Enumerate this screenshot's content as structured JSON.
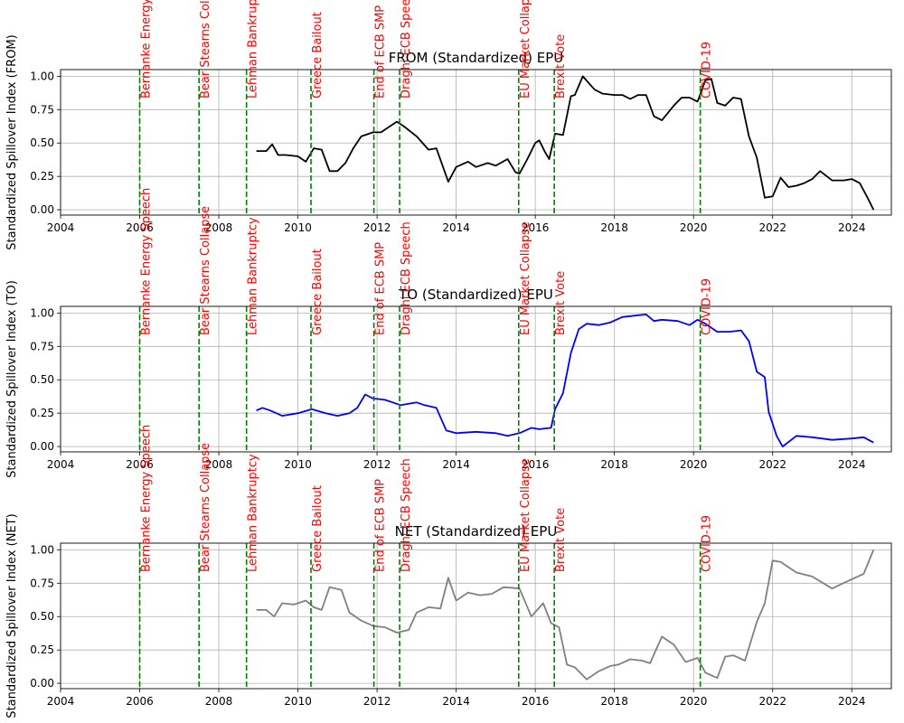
{
  "chart_data": [
    {
      "type": "line",
      "title": "FROM (Standardized) EPU",
      "ylabel": "Standardized Spillover Index (FROM)",
      "xlabel": "",
      "xlim": [
        2004,
        2025
      ],
      "ylim": [
        -0.04,
        1.05
      ],
      "xticks": [
        2004,
        2006,
        2008,
        2010,
        2012,
        2014,
        2016,
        2018,
        2020,
        2022,
        2024
      ],
      "yticks": [
        0.0,
        0.25,
        0.5,
        0.75,
        1.0
      ],
      "ytick_labels": [
        "0.00",
        "0.25",
        "0.50",
        "0.75",
        "1.00"
      ],
      "grid": true,
      "line_color": "#000000",
      "series": [
        {
          "x": [
            2008.95,
            2009.2,
            2009.35,
            2009.5,
            2009.7,
            2010.0,
            2010.2,
            2010.4,
            2010.6,
            2010.8,
            2011.0,
            2011.2,
            2011.4,
            2011.6,
            2011.9,
            2012.1,
            2012.3,
            2012.5,
            2012.7,
            2013.0,
            2013.3,
            2013.5,
            2013.8,
            2014.0,
            2014.3,
            2014.5,
            2014.8,
            2015.0,
            2015.3,
            2015.5,
            2015.6,
            2015.8,
            2016.0,
            2016.1,
            2016.25,
            2016.35,
            2016.5,
            2016.7,
            2016.9,
            2017.0,
            2017.2,
            2017.35,
            2017.5,
            2017.7,
            2018.0,
            2018.2,
            2018.4,
            2018.6,
            2018.8,
            2019.0,
            2019.2,
            2019.5,
            2019.7,
            2019.9,
            2020.1,
            2020.3,
            2020.45,
            2020.6,
            2020.8,
            2021.0,
            2021.2,
            2021.4,
            2021.6,
            2021.8,
            2022.0,
            2022.2,
            2022.4,
            2022.6,
            2022.8,
            2023.0,
            2023.2,
            2023.5,
            2023.8,
            2024.0,
            2024.2,
            2024.4,
            2024.55
          ],
          "y": [
            0.44,
            0.44,
            0.49,
            0.41,
            0.41,
            0.4,
            0.36,
            0.46,
            0.45,
            0.29,
            0.29,
            0.35,
            0.46,
            0.55,
            0.58,
            0.58,
            0.62,
            0.66,
            0.62,
            0.55,
            0.45,
            0.46,
            0.21,
            0.32,
            0.36,
            0.32,
            0.35,
            0.33,
            0.38,
            0.28,
            0.27,
            0.38,
            0.5,
            0.52,
            0.43,
            0.38,
            0.57,
            0.56,
            0.85,
            0.86,
            1.0,
            0.95,
            0.9,
            0.87,
            0.86,
            0.86,
            0.83,
            0.86,
            0.86,
            0.7,
            0.67,
            0.78,
            0.84,
            0.84,
            0.81,
            0.97,
            0.98,
            0.8,
            0.78,
            0.84,
            0.83,
            0.55,
            0.39,
            0.09,
            0.1,
            0.24,
            0.17,
            0.18,
            0.2,
            0.23,
            0.29,
            0.22,
            0.22,
            0.23,
            0.2,
            0.09,
            0.0
          ]
        }
      ]
    },
    {
      "type": "line",
      "title": "TO (Standardized) EPU",
      "ylabel": "Standardized Spillover Index (TO)",
      "xlabel": "",
      "xlim": [
        2004,
        2025
      ],
      "ylim": [
        -0.04,
        1.05
      ],
      "xticks": [
        2004,
        2006,
        2008,
        2010,
        2012,
        2014,
        2016,
        2018,
        2020,
        2022,
        2024
      ],
      "yticks": [
        0.0,
        0.25,
        0.5,
        0.75,
        1.0
      ],
      "ytick_labels": [
        "0.00",
        "0.25",
        "0.50",
        "0.75",
        "1.00"
      ],
      "grid": true,
      "line_color": "#0000ff",
      "series": [
        {
          "x": [
            2008.95,
            2009.1,
            2009.3,
            2009.6,
            2010.0,
            2010.35,
            2010.7,
            2011.0,
            2011.3,
            2011.5,
            2011.7,
            2011.9,
            2012.2,
            2012.6,
            2013.0,
            2013.2,
            2013.5,
            2013.75,
            2014.0,
            2014.5,
            2015.0,
            2015.3,
            2015.6,
            2015.9,
            2016.1,
            2016.4,
            2016.5,
            2016.7,
            2016.9,
            2017.1,
            2017.3,
            2017.6,
            2017.9,
            2018.2,
            2018.5,
            2018.8,
            2019.0,
            2019.2,
            2019.6,
            2019.9,
            2020.1,
            2020.3,
            2020.6,
            2020.9,
            2021.2,
            2021.4,
            2021.6,
            2021.8,
            2021.9,
            2022.1,
            2022.25,
            2022.6,
            2023.0,
            2023.5,
            2024.0,
            2024.3,
            2024.55
          ],
          "y": [
            0.27,
            0.29,
            0.27,
            0.23,
            0.25,
            0.28,
            0.25,
            0.23,
            0.25,
            0.29,
            0.39,
            0.36,
            0.35,
            0.31,
            0.33,
            0.31,
            0.29,
            0.12,
            0.1,
            0.11,
            0.1,
            0.08,
            0.1,
            0.14,
            0.13,
            0.14,
            0.28,
            0.4,
            0.7,
            0.88,
            0.92,
            0.91,
            0.93,
            0.97,
            0.98,
            0.99,
            0.94,
            0.95,
            0.94,
            0.91,
            0.95,
            0.92,
            0.86,
            0.86,
            0.87,
            0.79,
            0.56,
            0.52,
            0.26,
            0.08,
            0.0,
            0.08,
            0.07,
            0.05,
            0.06,
            0.07,
            0.03
          ]
        }
      ]
    },
    {
      "type": "line",
      "title": "NET (Standardized) EPU",
      "ylabel": "Standardized Spillover Index (NET)",
      "xlabel": "",
      "xlim": [
        2004,
        2025
      ],
      "ylim": [
        -0.04,
        1.05
      ],
      "xticks": [
        2004,
        2006,
        2008,
        2010,
        2012,
        2014,
        2016,
        2018,
        2020,
        2022,
        2024
      ],
      "yticks": [
        0.0,
        0.25,
        0.5,
        0.75,
        1.0
      ],
      "ytick_labels": [
        "0.00",
        "0.25",
        "0.50",
        "0.75",
        "1.00"
      ],
      "grid": true,
      "line_color": "#808080",
      "series": [
        {
          "x": [
            2008.95,
            2009.2,
            2009.4,
            2009.6,
            2009.9,
            2010.2,
            2010.4,
            2010.6,
            2010.8,
            2011.1,
            2011.3,
            2011.6,
            2011.9,
            2012.2,
            2012.5,
            2012.8,
            2013.0,
            2013.3,
            2013.6,
            2013.8,
            2014.0,
            2014.3,
            2014.6,
            2014.9,
            2015.2,
            2015.6,
            2015.9,
            2016.2,
            2016.4,
            2016.6,
            2016.8,
            2017.0,
            2017.3,
            2017.6,
            2017.9,
            2018.1,
            2018.4,
            2018.7,
            2018.9,
            2019.2,
            2019.5,
            2019.8,
            2020.1,
            2020.3,
            2020.6,
            2020.8,
            2021.0,
            2021.3,
            2021.6,
            2021.8,
            2022.0,
            2022.2,
            2022.6,
            2023.0,
            2023.5,
            2024.0,
            2024.3,
            2024.55
          ],
          "y": [
            0.55,
            0.55,
            0.5,
            0.6,
            0.59,
            0.62,
            0.57,
            0.55,
            0.72,
            0.7,
            0.53,
            0.47,
            0.43,
            0.42,
            0.38,
            0.4,
            0.53,
            0.57,
            0.56,
            0.79,
            0.62,
            0.68,
            0.66,
            0.67,
            0.72,
            0.71,
            0.5,
            0.6,
            0.45,
            0.42,
            0.14,
            0.12,
            0.03,
            0.09,
            0.13,
            0.14,
            0.18,
            0.17,
            0.15,
            0.35,
            0.29,
            0.16,
            0.19,
            0.08,
            0.04,
            0.2,
            0.21,
            0.17,
            0.46,
            0.6,
            0.92,
            0.91,
            0.83,
            0.8,
            0.71,
            0.78,
            0.82,
            1.0
          ]
        }
      ]
    }
  ],
  "events": [
    {
      "label": "Bernanke Energy Speech",
      "x": 2006.0
    },
    {
      "label": "Bear Stearns Collapse",
      "x": 2007.5
    },
    {
      "label": "Lehman Bankruptcy",
      "x": 2008.7
    },
    {
      "label": "Greece Bailout",
      "x": 2010.33
    },
    {
      "label": "End of ECB SMP",
      "x": 2011.92
    },
    {
      "label": "Draghi ECB Speech",
      "x": 2012.57
    },
    {
      "label": "EU Market Collapse",
      "x": 2015.58
    },
    {
      "label": "Brexit Vote",
      "x": 2016.48
    },
    {
      "label": "COVID-19",
      "x": 2020.17
    }
  ],
  "colors": {
    "event_line": "#008000",
    "event_text": "#ff0000",
    "grid": "#b0b0b0",
    "axes": "#000000"
  }
}
